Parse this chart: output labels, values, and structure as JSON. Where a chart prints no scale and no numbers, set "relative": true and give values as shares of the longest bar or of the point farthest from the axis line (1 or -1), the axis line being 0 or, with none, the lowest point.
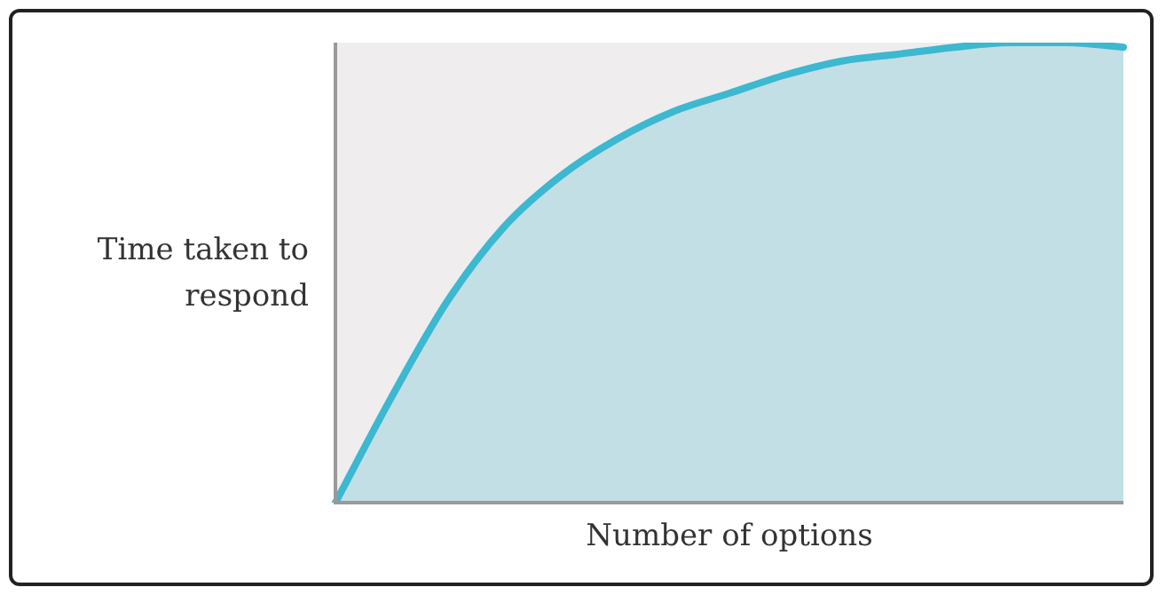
{
  "chart_data": {
    "type": "area",
    "relative": true,
    "xlabel": "Number of options",
    "ylabel": "Time taken to respond",
    "categories": [
      null,
      null,
      null,
      null,
      null,
      null,
      null,
      null,
      null,
      null,
      null,
      null,
      null,
      null,
      null
    ],
    "series": [
      {
        "color": "#3cb8d0",
        "values": [
          0,
          0.23,
          0.44,
          0.6,
          0.71,
          0.79,
          0.85,
          0.89,
          0.93,
          0.96,
          0.975,
          0.99,
          1,
          1,
          0.99
        ]
      }
    ],
    "legend": false
  }
}
